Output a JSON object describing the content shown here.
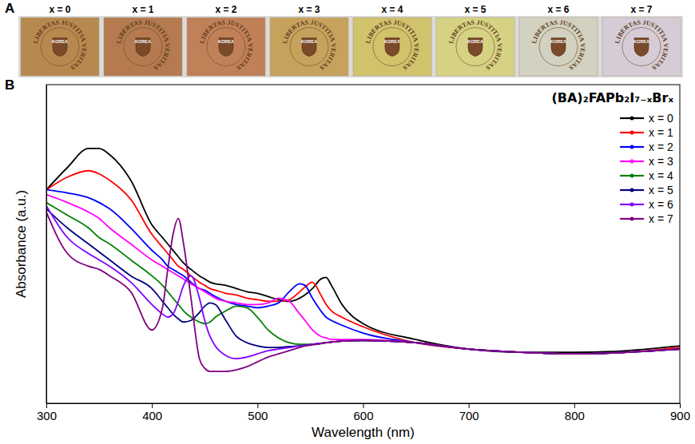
{
  "chart_data": {
    "type": "line",
    "panel": "B",
    "x_label": "Wavelength (nm)",
    "y_label": "Absorbance (a.u.)",
    "legend_title": "(BA)₂FAPb₂I₇₋ₓBrₓ",
    "legend": "upper right",
    "tick_labels": "x",
    "xlim": [
      300,
      900
    ],
    "xticks": [
      300,
      400,
      500,
      600,
      700,
      800,
      900
    ],
    "ylim": [
      0,
      1
    ],
    "x": [
      300,
      320,
      340,
      350,
      360,
      380,
      400,
      410,
      415,
      420,
      425,
      430,
      437,
      445,
      450,
      455,
      460,
      470,
      480,
      490,
      500,
      510,
      520,
      530,
      540,
      545,
      552,
      560,
      565,
      570,
      580,
      600,
      650,
      700,
      750,
      800,
      850,
      900
    ],
    "series": [
      {
        "name": "x = 0",
        "color": "#000000",
        "values": [
          0.67,
          0.74,
          0.8,
          0.8,
          0.78,
          0.7,
          0.56,
          0.52,
          0.5,
          0.48,
          0.46,
          0.44,
          0.42,
          0.4,
          0.39,
          0.38,
          0.375,
          0.37,
          0.36,
          0.35,
          0.345,
          0.335,
          0.325,
          0.32,
          0.33,
          0.34,
          0.36,
          0.39,
          0.395,
          0.37,
          0.31,
          0.25,
          0.2,
          0.17,
          0.16,
          0.16,
          0.165,
          0.18
        ]
      },
      {
        "name": "x = 1",
        "color": "#ff0000",
        "values": [
          0.67,
          0.71,
          0.73,
          0.72,
          0.7,
          0.64,
          0.53,
          0.49,
          0.47,
          0.45,
          0.43,
          0.42,
          0.4,
          0.38,
          0.37,
          0.36,
          0.355,
          0.345,
          0.34,
          0.33,
          0.325,
          0.32,
          0.32,
          0.325,
          0.35,
          0.365,
          0.38,
          0.34,
          0.31,
          0.29,
          0.27,
          0.24,
          0.19,
          0.17,
          0.16,
          0.155,
          0.16,
          0.175
        ]
      },
      {
        "name": "x = 2",
        "color": "#0000ff",
        "values": [
          0.67,
          0.66,
          0.645,
          0.63,
          0.61,
          0.55,
          0.48,
          0.45,
          0.43,
          0.42,
          0.41,
          0.4,
          0.38,
          0.36,
          0.355,
          0.345,
          0.335,
          0.32,
          0.31,
          0.305,
          0.3,
          0.305,
          0.315,
          0.35,
          0.375,
          0.37,
          0.33,
          0.29,
          0.27,
          0.26,
          0.245,
          0.22,
          0.19,
          0.17,
          0.16,
          0.155,
          0.16,
          0.17
        ]
      },
      {
        "name": "x = 3",
        "color": "#ff00ff",
        "values": [
          0.655,
          0.63,
          0.6,
          0.58,
          0.55,
          0.5,
          0.45,
          0.43,
          0.42,
          0.41,
          0.4,
          0.39,
          0.375,
          0.36,
          0.35,
          0.34,
          0.33,
          0.32,
          0.315,
          0.31,
          0.31,
          0.315,
          0.33,
          0.32,
          0.28,
          0.26,
          0.23,
          0.21,
          0.205,
          0.2,
          0.2,
          0.2,
          0.19,
          0.17,
          0.16,
          0.155,
          0.16,
          0.17
        ]
      },
      {
        "name": "x = 4",
        "color": "#008000",
        "values": [
          0.63,
          0.59,
          0.55,
          0.52,
          0.5,
          0.45,
          0.4,
          0.37,
          0.35,
          0.33,
          0.31,
          0.29,
          0.27,
          0.255,
          0.25,
          0.255,
          0.27,
          0.29,
          0.305,
          0.3,
          0.27,
          0.23,
          0.205,
          0.19,
          0.185,
          0.185,
          0.185,
          0.188,
          0.19,
          0.192,
          0.195,
          0.197,
          0.19,
          0.17,
          0.16,
          0.155,
          0.16,
          0.17
        ]
      },
      {
        "name": "x = 5",
        "color": "#000080",
        "values": [
          0.61,
          0.55,
          0.5,
          0.475,
          0.45,
          0.4,
          0.36,
          0.32,
          0.3,
          0.28,
          0.265,
          0.255,
          0.26,
          0.285,
          0.305,
          0.315,
          0.31,
          0.26,
          0.21,
          0.19,
          0.18,
          0.175,
          0.175,
          0.178,
          0.18,
          0.182,
          0.185,
          0.188,
          0.19,
          0.192,
          0.195,
          0.197,
          0.19,
          0.17,
          0.16,
          0.155,
          0.16,
          0.17
        ]
      },
      {
        "name": "x = 6",
        "color": "#8000ff",
        "values": [
          0.62,
          0.52,
          0.47,
          0.45,
          0.43,
          0.38,
          0.31,
          0.28,
          0.27,
          0.28,
          0.32,
          0.37,
          0.4,
          0.33,
          0.26,
          0.21,
          0.18,
          0.15,
          0.14,
          0.145,
          0.155,
          0.165,
          0.17,
          0.175,
          0.18,
          0.182,
          0.185,
          0.188,
          0.19,
          0.192,
          0.195,
          0.197,
          0.19,
          0.17,
          0.16,
          0.155,
          0.16,
          0.17
        ]
      },
      {
        "name": "x = 7",
        "color": "#800080",
        "values": [
          0.6,
          0.47,
          0.43,
          0.42,
          0.4,
          0.35,
          0.23,
          0.3,
          0.42,
          0.53,
          0.58,
          0.5,
          0.33,
          0.14,
          0.11,
          0.1,
          0.1,
          0.1,
          0.105,
          0.115,
          0.13,
          0.145,
          0.155,
          0.165,
          0.175,
          0.18,
          0.183,
          0.187,
          0.19,
          0.192,
          0.195,
          0.197,
          0.19,
          0.17,
          0.16,
          0.155,
          0.16,
          0.17
        ]
      }
    ]
  },
  "photo": {
    "panel": "A",
    "motto": "LIBERTAS JUSTITIA VERITAS",
    "emblem": "KOREA",
    "films": [
      {
        "label": "x = 0",
        "color": "#b8894f"
      },
      {
        "label": "x = 1",
        "color": "#b57a4f"
      },
      {
        "label": "x = 2",
        "color": "#c08058"
      },
      {
        "label": "x = 3",
        "color": "#c7a25c"
      },
      {
        "label": "x = 4",
        "color": "#d1c26c"
      },
      {
        "label": "x = 5",
        "color": "#d6d283"
      },
      {
        "label": "x = 6",
        "color": "#d3d1bf"
      },
      {
        "label": "x = 7",
        "color": "#d6ccd6"
      }
    ]
  }
}
